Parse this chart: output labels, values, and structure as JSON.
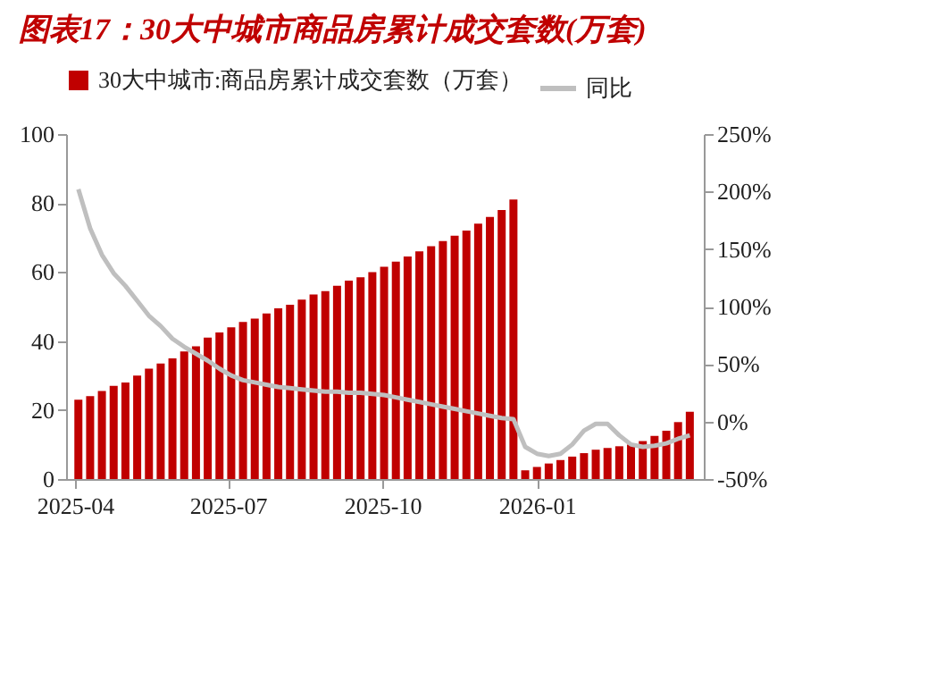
{
  "chart_data": {
    "type": "bar",
    "title": "图表17：30大中城市商品房累计成交套数(万套)",
    "x": [
      "2025-04-03",
      "2025-04-10",
      "2025-04-17",
      "2025-04-24",
      "2025-05-01",
      "2025-05-08",
      "2025-05-15",
      "2025-05-22",
      "2025-05-29",
      "2025-06-05",
      "2025-06-12",
      "2025-06-19",
      "2025-06-26",
      "2025-07-03",
      "2025-07-10",
      "2025-07-17",
      "2025-07-24",
      "2025-07-31",
      "2025-08-07",
      "2025-08-14",
      "2025-08-21",
      "2025-08-28",
      "2025-09-04",
      "2025-09-11",
      "2025-09-18",
      "2025-09-25",
      "2025-10-02",
      "2025-10-09",
      "2025-10-16",
      "2025-10-23",
      "2025-10-30",
      "2025-11-06",
      "2025-11-13",
      "2025-11-20",
      "2025-11-27",
      "2025-12-04",
      "2025-12-11",
      "2025-12-18",
      "2025-12-25",
      "2026-01-01",
      "2026-01-08",
      "2026-01-15",
      "2026-01-22",
      "2026-01-29",
      "2026-02-05",
      "2026-02-12",
      "2026-02-19",
      "2026-02-26",
      "2026-03-05",
      "2026-03-12",
      "2026-03-19",
      "2026-03-26",
      "2026-04-02"
    ],
    "series": [
      {
        "name": "30大中城市:商品房累计成交套数（万套）",
        "color": "#c00000",
        "values": [
          23,
          24,
          25.5,
          27,
          28,
          30,
          32,
          33.5,
          35,
          37,
          38.5,
          41,
          42.5,
          44,
          45.5,
          46.5,
          48,
          49.5,
          50.5,
          52,
          53.5,
          54.5,
          56,
          57.5,
          58.5,
          60,
          61.5,
          63,
          64.5,
          66,
          67.5,
          69,
          70.5,
          72,
          74,
          76,
          78,
          81,
          2.5,
          3.5,
          4.5,
          5.5,
          6.5,
          7.5,
          8.5,
          9,
          9.5,
          10,
          11,
          12.5,
          14,
          16.5,
          19.5
        ]
      },
      {
        "name": "同比",
        "type": "line",
        "axis": "y2",
        "color": "#bfbfbf",
        "values": [
          202,
          168,
          145,
          129,
          118,
          105,
          92,
          83,
          72,
          65,
          59,
          53,
          46,
          40,
          36,
          34,
          32,
          30,
          29,
          28,
          27,
          26,
          26,
          25,
          25,
          24,
          23,
          21,
          19,
          17,
          15,
          13,
          11,
          9,
          7,
          5,
          3,
          2,
          -22,
          -28,
          -30,
          -28,
          -20,
          -8,
          -2,
          -2,
          -12,
          -20,
          -22,
          -21,
          -19,
          -15,
          -12
        ]
      }
    ],
    "xlim": [
      "2025-04-01",
      "2026-04-05"
    ],
    "xticks": [
      {
        "value": "2025-04-01",
        "label": "2025-04"
      },
      {
        "value": "2025-07-01",
        "label": "2025-07"
      },
      {
        "value": "2025-10-01",
        "label": "2025-10"
      },
      {
        "value": "2026-01-01",
        "label": "2026-01"
      }
    ],
    "ylim": [
      0,
      100
    ],
    "yticks": [
      0,
      20,
      40,
      60,
      80,
      100
    ],
    "y2lim": [
      -50,
      250
    ],
    "y2ticks": [
      {
        "value": -50,
        "label": "-50%"
      },
      {
        "value": 0,
        "label": "0%"
      },
      {
        "value": 50,
        "label": "50%"
      },
      {
        "value": 100,
        "label": "100%"
      },
      {
        "value": 150,
        "label": "150%"
      },
      {
        "value": 200,
        "label": "200%"
      },
      {
        "value": 250,
        "label": "250%"
      }
    ],
    "grid": false,
    "legend": "top left",
    "marker": "none",
    "line_style": "solid"
  }
}
